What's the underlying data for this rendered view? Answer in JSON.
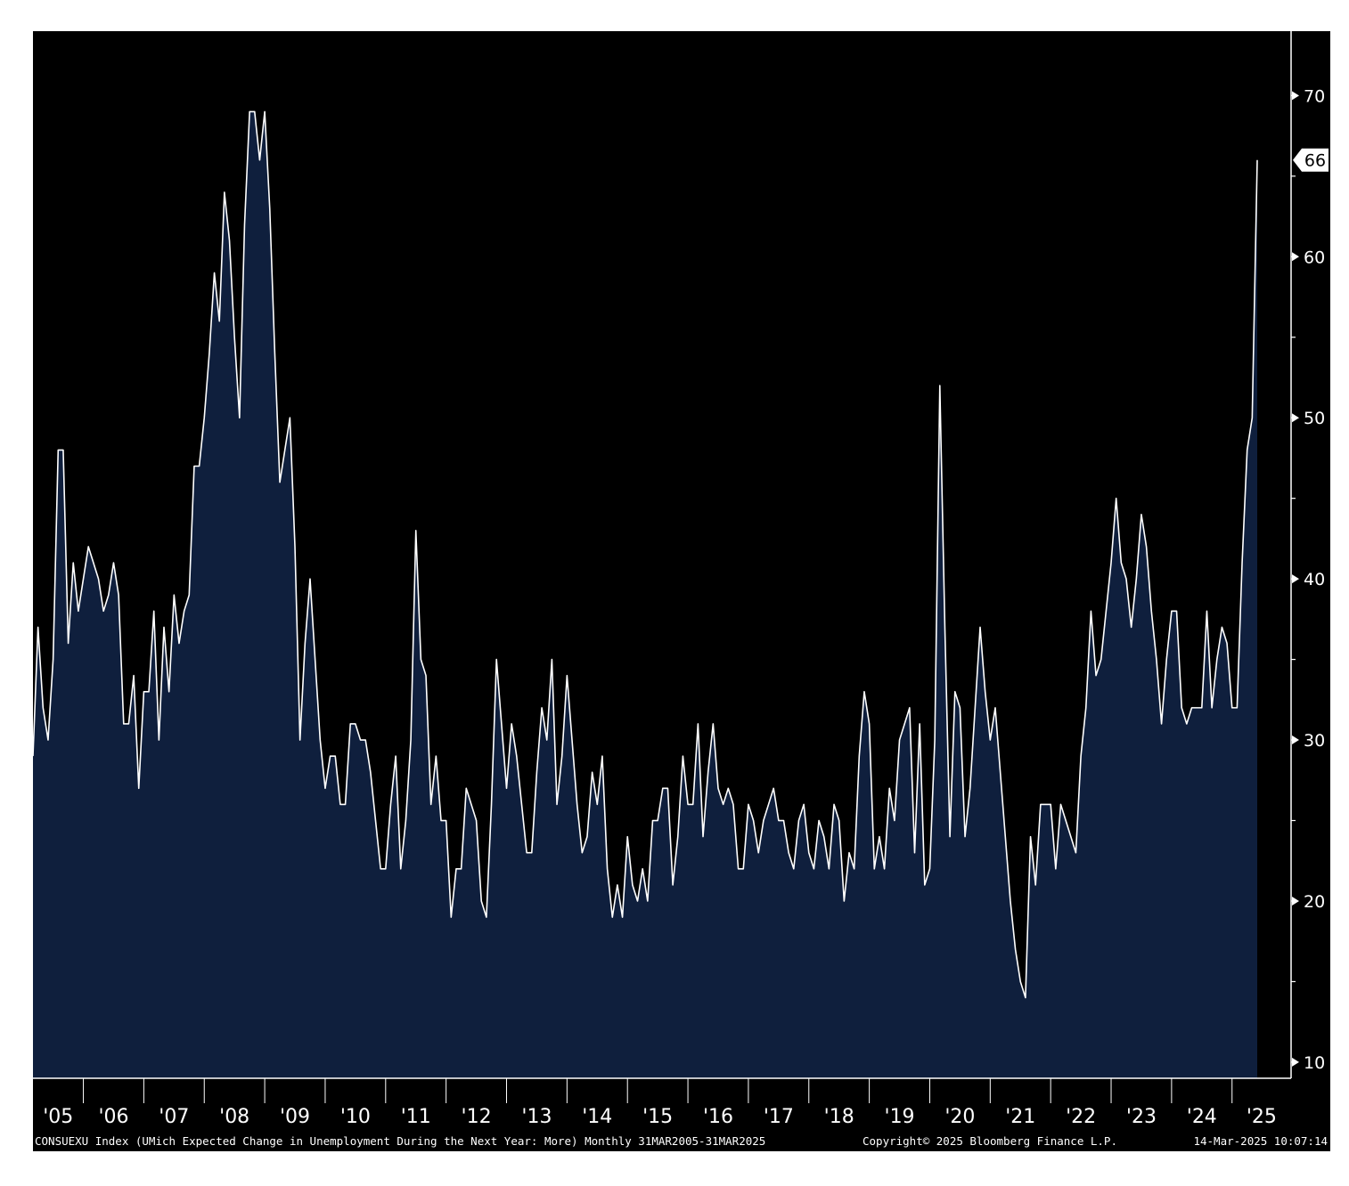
{
  "chart_data": {
    "type": "area",
    "start": "2005-03",
    "frequency": "monthly",
    "x_tick_labels": [
      "'05",
      "'06",
      "'07",
      "'08",
      "'09",
      "'10",
      "'11",
      "'12",
      "'13",
      "'14",
      "'15",
      "'16",
      "'17",
      "'18",
      "'19",
      "'20",
      "'21",
      "'22",
      "'23",
      "'24",
      "'25"
    ],
    "y_ticks": [
      10,
      20,
      30,
      40,
      50,
      60,
      70
    ],
    "ylim": [
      9,
      74
    ],
    "last_value_label": "66",
    "grid": false,
    "series": [
      {
        "values": [
          29,
          37,
          32,
          30,
          35,
          48,
          48,
          36,
          41,
          38,
          40,
          42,
          41,
          40,
          38,
          39,
          41,
          39,
          31,
          31,
          34,
          27,
          33,
          33,
          38,
          30,
          37,
          33,
          39,
          36,
          38,
          39,
          47,
          47,
          50,
          54,
          59,
          56,
          64,
          61,
          55,
          50,
          62,
          69,
          69,
          66,
          69,
          63,
          54,
          46,
          48,
          50,
          42,
          30,
          36,
          40,
          35,
          30,
          27,
          29,
          29,
          26,
          26,
          31,
          31,
          30,
          30,
          28,
          25,
          22,
          22,
          26,
          29,
          22,
          25,
          30,
          43,
          35,
          34,
          26,
          29,
          25,
          25,
          19,
          22,
          22,
          27,
          26,
          25,
          20,
          19,
          26,
          35,
          31,
          27,
          31,
          29,
          26,
          23,
          23,
          28,
          32,
          30,
          35,
          26,
          29,
          34,
          30,
          26,
          23,
          24,
          28,
          26,
          29,
          22,
          19,
          21,
          19,
          24,
          21,
          20,
          22,
          20,
          25,
          25,
          27,
          27,
          21,
          24,
          29,
          26,
          26,
          31,
          24,
          28,
          31,
          27,
          26,
          27,
          26,
          22,
          22,
          26,
          25,
          23,
          25,
          26,
          27,
          25,
          25,
          23,
          22,
          25,
          26,
          23,
          22,
          25,
          24,
          22,
          26,
          25,
          20,
          23,
          22,
          29,
          33,
          31,
          22,
          24,
          22,
          27,
          25,
          30,
          31,
          32,
          23,
          31,
          21,
          22,
          30,
          52,
          37,
          24,
          33,
          32,
          24,
          27,
          32,
          37,
          33,
          30,
          32,
          28,
          24,
          20,
          17,
          15,
          14,
          24,
          21,
          26,
          26,
          26,
          22,
          26,
          25,
          24,
          23,
          29,
          32,
          38,
          34,
          35,
          38,
          41,
          45,
          41,
          40,
          37,
          40,
          44,
          42,
          38,
          35,
          31,
          35,
          38,
          38,
          32,
          31,
          32,
          32,
          32,
          38,
          32,
          35,
          37,
          36,
          32,
          32,
          41,
          48,
          50,
          66
        ]
      }
    ],
    "colors": {
      "fill": "#0f1f3d",
      "line": "#ffffff",
      "background": "#000000"
    }
  },
  "footer": {
    "description": "CONSUEXU Index (UMich Expected Change in Unemployment During the Next Year: More)  Monthly 31MAR2005-31MAR2025",
    "copyright": "Copyright© 2025 Bloomberg Finance L.P.",
    "timestamp": "14-Mar-2025 10:07:14"
  }
}
